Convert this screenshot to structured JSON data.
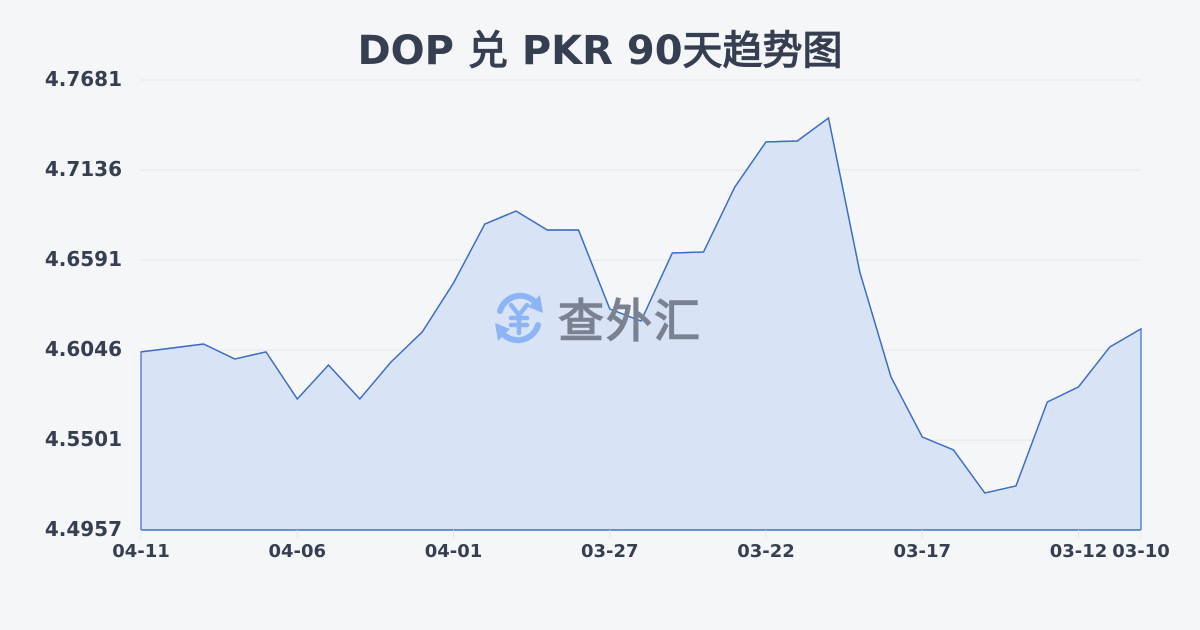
{
  "title": "DOP 兑 PKR 90天趋势图",
  "watermark": {
    "text": "查外汇",
    "icon": "yuan-exchange-icon"
  },
  "colors": {
    "line": "#3b6cc8",
    "fill": "#d6e1f5",
    "grid": "#e2e5ea",
    "text": "#353f51",
    "watermark_icon": "#8db4f5",
    "watermark_text": "#7a8190"
  },
  "chart_data": {
    "type": "area",
    "title": "DOP 兑 PKR 90天趋势图",
    "xlabel": "",
    "ylabel": "",
    "ylim": [
      4.4957,
      4.7681
    ],
    "yticks": [
      "4.7681",
      "4.7136",
      "4.6591",
      "4.6046",
      "4.5501",
      "4.4957"
    ],
    "xticks": [
      "04-11",
      "04-06",
      "04-01",
      "03-27",
      "03-22",
      "03-17",
      "03-12",
      "03-10"
    ],
    "grid": true,
    "legend": "none",
    "x": [
      "04-11",
      "04-10",
      "04-09",
      "04-08",
      "04-07",
      "04-06",
      "04-05",
      "04-04",
      "04-03",
      "04-02",
      "04-01",
      "03-31",
      "03-30",
      "03-29",
      "03-28",
      "03-27",
      "03-26",
      "03-25",
      "03-24",
      "03-23",
      "03-22",
      "03-21",
      "03-20",
      "03-19",
      "03-18",
      "03-17",
      "03-16",
      "03-15",
      "03-14",
      "03-13",
      "03-12",
      "03-11",
      "03-10"
    ],
    "series": [
      {
        "name": "DOP/PKR",
        "values": [
          4.6035,
          4.6059,
          4.6083,
          4.5992,
          4.6035,
          4.575,
          4.5956,
          4.575,
          4.5974,
          4.6156,
          4.6452,
          4.6809,
          4.6888,
          4.6773,
          4.6773,
          4.6295,
          4.6222,
          4.6634,
          4.664,
          4.7033,
          4.7306,
          4.7312,
          4.7451,
          4.6519,
          4.5883,
          4.552,
          4.5441,
          4.5181,
          4.5224,
          4.5732,
          4.5823,
          4.6065,
          4.6175
        ]
      }
    ]
  }
}
